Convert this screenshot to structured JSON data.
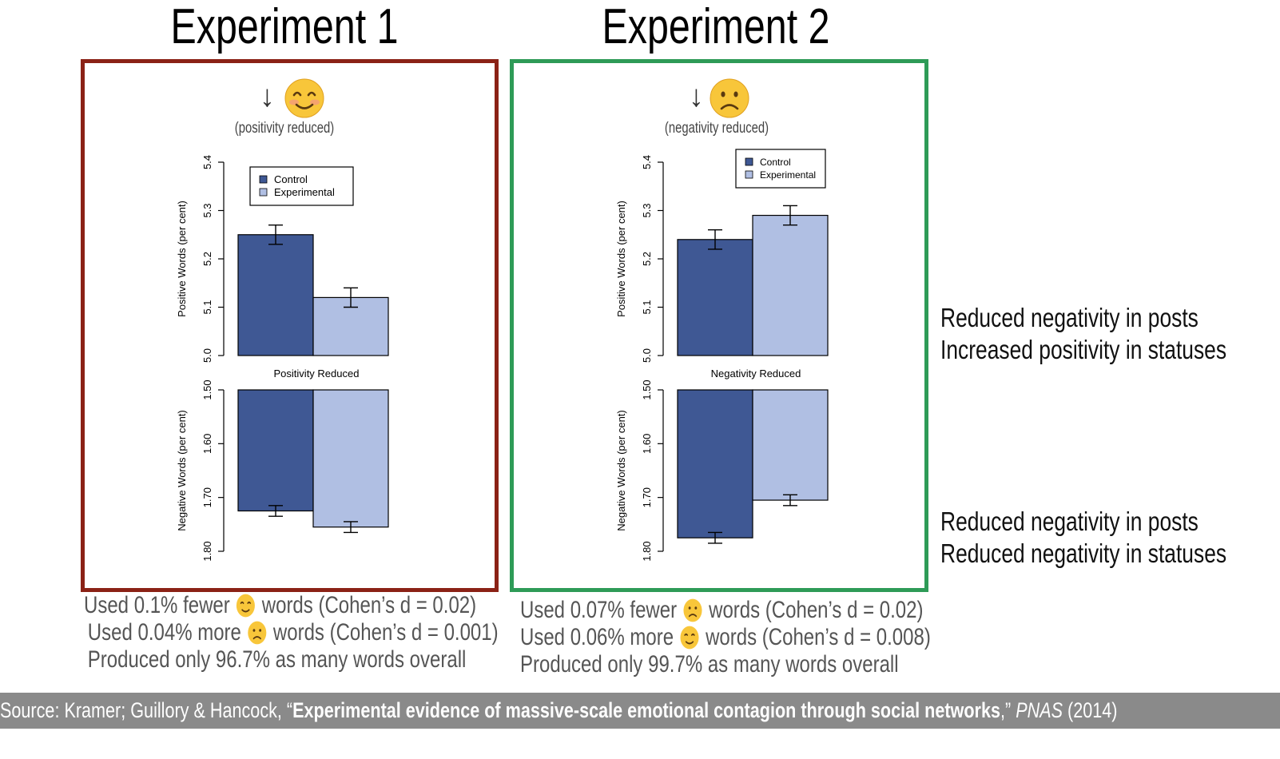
{
  "experiments": [
    {
      "title": "Experiment 1",
      "arrow": "↓",
      "face": "smile-icon",
      "condition_note": "(positivity reduced)",
      "frame_color": "#8b2216",
      "stats": [
        {
          "pre": "Used 0.1% fewer",
          "emoji": "smile-icon",
          "post": "words (Cohen’s d = 0.02)"
        },
        {
          "pre": "Used 0.04% more",
          "emoji": "frown-icon",
          "post": "words (Cohen’s d = 0.001)"
        },
        {
          "pre": "Produced only 96.7% as many words overall",
          "emoji": "",
          "post": ""
        }
      ]
    },
    {
      "title": "Experiment 2",
      "arrow": "↓",
      "face": "frown-icon",
      "condition_note": "(negativity reduced)",
      "frame_color": "#2e9b57",
      "stats": [
        {
          "pre": "Used 0.07% fewer",
          "emoji": "frown-icon",
          "post": "words (Cohen’s d = 0.02)"
        },
        {
          "pre": "Used 0.06% more",
          "emoji": "smile-icon",
          "post": "words (Cohen’s d = 0.008)"
        },
        {
          "pre": "Produced only 99.7% as many words overall",
          "emoji": "",
          "post": ""
        }
      ]
    }
  ],
  "side_notes": [
    [
      "Reduced negativity in posts",
      "Increased positivity in statuses"
    ],
    [
      "Reduced negativity in posts",
      "Reduced negativity in statuses"
    ]
  ],
  "source": {
    "prefix": "Source: Kramer; Guillory & Hancock, “",
    "bold": "Experimental evidence of massive-scale emotional contagion through social networks",
    "after_bold": ",” ",
    "italic": "PNAS",
    "suffix": " (2014)"
  },
  "colors": {
    "control": "#3f5894",
    "experimental": "#b0bfe3"
  },
  "chart_data": [
    {
      "type": "bar",
      "categories": [
        "Control",
        "Experimental"
      ],
      "legend": [
        "Control",
        "Experimental"
      ],
      "middle_label": "Positivity Reduced",
      "top": {
        "ylabel": "Positive Words (per cent)",
        "ylim": [
          5.0,
          5.4
        ],
        "ticks": [
          "5.0",
          "5.1",
          "5.2",
          "5.3",
          "5.4"
        ],
        "values": [
          5.25,
          5.12
        ],
        "errors": [
          0.02,
          0.02
        ]
      },
      "bottom": {
        "ylabel": "Negative Words (per cent)",
        "ylim": [
          1.5,
          1.8
        ],
        "ticks": [
          "1.50",
          "1.60",
          "1.70",
          "1.80"
        ],
        "values": [
          1.725,
          1.755
        ],
        "errors": [
          0.01,
          0.01
        ]
      }
    },
    {
      "type": "bar",
      "categories": [
        "Control",
        "Experimental"
      ],
      "legend": [
        "Control",
        "Experimental"
      ],
      "middle_label": "Negativity Reduced",
      "top": {
        "ylabel": "Positive Words (per cent)",
        "ylim": [
          5.0,
          5.4
        ],
        "ticks": [
          "5.0",
          "5.1",
          "5.2",
          "5.3",
          "5.4"
        ],
        "values": [
          5.24,
          5.29
        ],
        "errors": [
          0.02,
          0.02
        ]
      },
      "bottom": {
        "ylabel": "Negative Words (per cent)",
        "ylim": [
          1.5,
          1.8
        ],
        "ticks": [
          "1.50",
          "1.60",
          "1.70",
          "1.80"
        ],
        "values": [
          1.775,
          1.705
        ],
        "errors": [
          0.01,
          0.01
        ]
      }
    }
  ]
}
